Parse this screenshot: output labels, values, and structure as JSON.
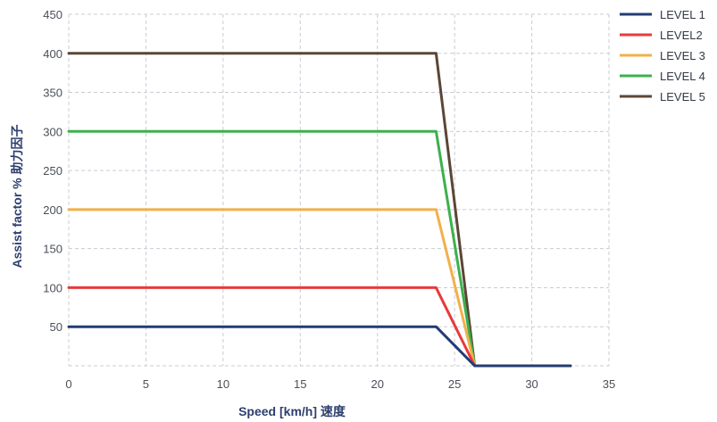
{
  "chart_data": {
    "type": "line",
    "title": "",
    "xlabel": "Speed [km/h] 速度",
    "ylabel": "Assist factor % 助力因子",
    "xlim": [
      0,
      35
    ],
    "ylim": [
      0,
      450
    ],
    "xticks": [
      0,
      5,
      10,
      15,
      20,
      25,
      30,
      35
    ],
    "yticks": [
      50,
      100,
      150,
      200,
      250,
      300,
      350,
      400,
      450
    ],
    "grid": true,
    "legend_position": "right",
    "series": [
      {
        "name": "LEVEL 1",
        "color": "#233c72",
        "x": [
          0,
          23.8,
          26.3,
          32.5
        ],
        "y": [
          50,
          50,
          0,
          0
        ]
      },
      {
        "name": "LEVEL2",
        "color": "#e83a3a",
        "x": [
          0,
          23.8,
          26.3,
          32.5
        ],
        "y": [
          100,
          100,
          0,
          0
        ]
      },
      {
        "name": "LEVEL 3",
        "color": "#f2b04a",
        "x": [
          0,
          23.8,
          26.3,
          32.5
        ],
        "y": [
          200,
          200,
          0,
          0
        ]
      },
      {
        "name": "LEVEL 4",
        "color": "#3db04c",
        "x": [
          0,
          23.8,
          26.3,
          32.5
        ],
        "y": [
          300,
          300,
          0,
          0
        ]
      },
      {
        "name": "LEVEL 5",
        "color": "#5b4636",
        "x": [
          0,
          23.8,
          26.3,
          32.5
        ],
        "y": [
          400,
          400,
          0,
          0
        ]
      }
    ]
  }
}
